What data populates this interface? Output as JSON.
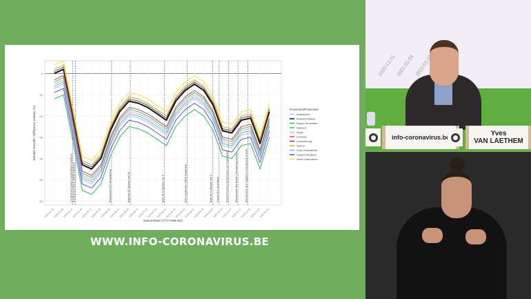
{
  "broadcast": {
    "website_banner": "WWW.INFO-CORONAVIRUS.BE",
    "nameplate_site": "info-coronavirus.be",
    "speaker_first_name": "Yves",
    "speaker_last_name": "VAN LAETHEM",
    "background_screen_dates": [
      "2020-12-21",
      "2021-01-04",
      "2021-01-18"
    ],
    "colors": {
      "background_green": "#6fae5c"
    }
  },
  "chart_data": {
    "type": "line",
    "title": "",
    "xlabel": "Datum/Date (YYYY-MM-DD)",
    "ylabel": "Relatief verschil / Différence relative (%)",
    "ylim": [
      -62,
      6
    ],
    "xlim": [
      "2020-02-01",
      "2021-01-20"
    ],
    "yticks": [
      0,
      -10,
      -20,
      -30,
      -40,
      -50,
      -60
    ],
    "grid": true,
    "legend_title": "Provinces/Provincies",
    "legend_position": "right",
    "x": [
      "2020-02-15",
      "2020-02-29",
      "2020-03-14",
      "2020-03-28",
      "2020-04-11",
      "2020-04-25",
      "2020-05-09",
      "2020-05-23",
      "2020-06-06",
      "2020-06-20",
      "2020-07-04",
      "2020-07-18",
      "2020-08-01",
      "2020-08-15",
      "2020-08-29",
      "2020-09-12",
      "2020-09-26",
      "2020-10-10",
      "2020-10-24",
      "2020-11-07",
      "2020-11-21",
      "2020-12-05",
      "2020-12-19",
      "2021-01-02"
    ],
    "series": [
      {
        "name": "Antwerpen",
        "color": "#8fd3e8",
        "values": [
          -7,
          -5,
          -27,
          -50,
          -52,
          -47,
          -34,
          -25,
          -20,
          -21,
          -23,
          -26,
          -29,
          -20,
          -15,
          -12,
          -15,
          -22,
          -34,
          -35,
          -29,
          -28,
          -40,
          -25
        ]
      },
      {
        "name": "Brabant Wallon",
        "color": "#111111",
        "values": [
          0,
          2,
          -20,
          -43,
          -45,
          -40,
          -27,
          -18,
          -13,
          -14,
          -16,
          -19,
          -22,
          -13,
          -8,
          -5,
          -8,
          -15,
          -27,
          -28,
          -22,
          -21,
          -33,
          -18
        ]
      },
      {
        "name": "Region Bruxelles",
        "color": "#2fb36a",
        "values": [
          -12,
          -10,
          -32,
          -55,
          -57,
          -52,
          -39,
          -30,
          -25,
          -26,
          -28,
          -31,
          -34,
          -25,
          -20,
          -17,
          -20,
          -27,
          -39,
          -40,
          -34,
          -33,
          -45,
          -30
        ]
      },
      {
        "name": "Hainaut",
        "color": "#55c24a",
        "values": [
          -4,
          -2,
          -24,
          -47,
          -49,
          -44,
          -31,
          -22,
          -17,
          -18,
          -20,
          -23,
          -26,
          -17,
          -12,
          -9,
          -12,
          -19,
          -31,
          -32,
          -26,
          -25,
          -37,
          -22
        ]
      },
      {
        "name": "Liege",
        "color": "#c9b6e0",
        "values": [
          -5,
          -3,
          -25,
          -48,
          -50,
          -45,
          -32,
          -23,
          -18,
          -19,
          -21,
          -24,
          -27,
          -18,
          -13,
          -10,
          -13,
          -20,
          -32,
          -33,
          -27,
          -26,
          -38,
          -23
        ]
      },
      {
        "name": "Limburg",
        "color": "#d0407a",
        "values": [
          -3,
          -1,
          -23,
          -46,
          -48,
          -43,
          -30,
          -21,
          -16,
          -17,
          -19,
          -22,
          -25,
          -16,
          -11,
          -8,
          -11,
          -18,
          -30,
          -31,
          -25,
          -24,
          -36,
          -21
        ]
      },
      {
        "name": "Luxembourg",
        "color": "#6a4a2a",
        "values": [
          1,
          3,
          -19,
          -42,
          -44,
          -39,
          -26,
          -17,
          -12,
          -13,
          -15,
          -18,
          -21,
          -12,
          -7,
          -4,
          -7,
          -14,
          -26,
          -27,
          -21,
          -20,
          -32,
          -17
        ]
      },
      {
        "name": "Namur",
        "color": "#c9a24a",
        "values": [
          2,
          4,
          -18,
          -41,
          -43,
          -38,
          -25,
          -16,
          -11,
          -12,
          -14,
          -17,
          -20,
          -11,
          -6,
          -3,
          -6,
          -13,
          -25,
          -26,
          -20,
          -19,
          -31,
          -16
        ]
      },
      {
        "name": "Oost-Vlaanderen",
        "color": "#7fa8e0",
        "values": [
          -6,
          -4,
          -26,
          -49,
          -51,
          -46,
          -33,
          -24,
          -19,
          -20,
          -22,
          -25,
          -28,
          -19,
          -14,
          -11,
          -14,
          -21,
          -33,
          -34,
          -28,
          -27,
          -39,
          -24
        ]
      },
      {
        "name": "Vlaams-Brabant",
        "color": "#6a4ac8",
        "values": [
          -9,
          -7,
          -29,
          -52,
          -54,
          -49,
          -36,
          -27,
          -22,
          -23,
          -25,
          -28,
          -31,
          -22,
          -17,
          -14,
          -17,
          -24,
          -36,
          -37,
          -31,
          -30,
          -42,
          -27
        ]
      },
      {
        "name": "West-Vlaanderen",
        "color": "#f0e040",
        "values": [
          4,
          6,
          -16,
          -39,
          -41,
          -36,
          -23,
          -14,
          -9,
          -10,
          -12,
          -15,
          -18,
          -9,
          -4,
          -1,
          -4,
          -11,
          -23,
          -24,
          -18,
          -17,
          -29,
          -14
        ]
      }
    ],
    "events": [
      {
        "date": "2020-03-14",
        "label": "Confinement partiel | Gedeeltelijke lockdown"
      },
      {
        "date": "2020-03-18",
        "label": "Confinement strict | Strikte lockdown"
      },
      {
        "date": "2020-05-11",
        "label": "Déconfinement | Versoepeling"
      },
      {
        "date": "2020-06-08",
        "label": "Bulle de 15 | Bubbel van 15"
      },
      {
        "date": "2020-07-29",
        "label": "Bulle de 5 | Bubbel van 5"
      },
      {
        "date": "2020-09-01",
        "label": "DVS Septembre | WVS September"
      },
      {
        "date": "2020-10-09",
        "label": "Bulle de 3 | Bubbel van 3"
      },
      {
        "date": "2020-10-19",
        "label": "Couvre-feu | Avondklok"
      },
      {
        "date": "2020-11-02",
        "label": "Reconfinement | Verstrenging van maatregelen"
      },
      {
        "date": "2020-11-16",
        "label": "Réouverture des écoles | Heropening scholen"
      },
      {
        "date": "2020-12-01",
        "label": "Réouverture des magasins | Heropening winkels"
      }
    ]
  }
}
